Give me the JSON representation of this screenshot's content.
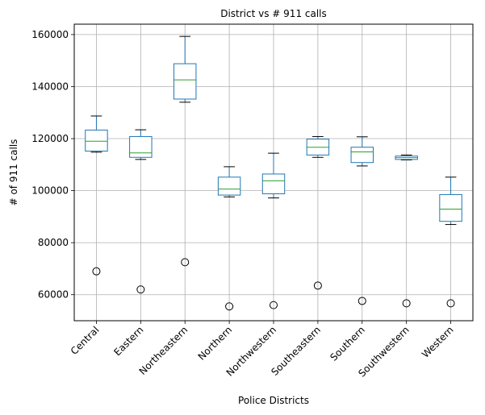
{
  "chart_data": {
    "type": "box",
    "title": "District vs # 911 calls",
    "xlabel": "Police Districts",
    "ylabel": "# of 911 calls",
    "ylim": [
      50000,
      164000
    ],
    "yticks": [
      60000,
      80000,
      100000,
      120000,
      140000,
      160000
    ],
    "ytick_labels": [
      "60000",
      "80000",
      "100000",
      "120000",
      "140000",
      "160000"
    ],
    "grid": true,
    "colors": {
      "box": "#1f77b4",
      "median": "#2ca02c",
      "whisker": "#1f77b4",
      "cap": "#000000",
      "flier": "#000000",
      "grid": "#b0b0b0"
    },
    "categories": [
      "Central",
      "Eastern",
      "Northeastern",
      "Northern",
      "Northwestern",
      "Southeastern",
      "Southern",
      "Southwestern",
      "Western"
    ],
    "boxes": [
      {
        "label": "Central",
        "whislo": 114800,
        "q1": 115200,
        "med": 119000,
        "q3": 123300,
        "whishi": 128700,
        "fliers": [
          69000
        ]
      },
      {
        "label": "Eastern",
        "whislo": 112000,
        "q1": 112800,
        "med": 114500,
        "q3": 120800,
        "whishi": 123400,
        "fliers": [
          62000
        ]
      },
      {
        "label": "Northeastern",
        "whislo": 134000,
        "q1": 135200,
        "med": 142600,
        "q3": 148800,
        "whishi": 159300,
        "fliers": [
          72500
        ]
      },
      {
        "label": "Northern",
        "whislo": 97600,
        "q1": 98300,
        "med": 100600,
        "q3": 105200,
        "whishi": 109200,
        "fliers": [
          55500
        ]
      },
      {
        "label": "Northwestern",
        "whislo": 97200,
        "q1": 98800,
        "med": 103800,
        "q3": 106400,
        "whishi": 114400,
        "fliers": [
          56000
        ]
      },
      {
        "label": "Southeastern",
        "whislo": 112800,
        "q1": 113700,
        "med": 116700,
        "q3": 119800,
        "whishi": 120800,
        "fliers": [
          63500
        ]
      },
      {
        "label": "Southern",
        "whislo": 109500,
        "q1": 110800,
        "med": 114900,
        "q3": 116700,
        "whishi": 120700,
        "fliers": [
          57600
        ]
      },
      {
        "label": "Southwestern",
        "whislo": 111800,
        "q1": 112000,
        "med": 112700,
        "q3": 113300,
        "whishi": 113700,
        "fliers": [
          56700
        ]
      },
      {
        "label": "Western",
        "whislo": 87000,
        "q1": 88200,
        "med": 92900,
        "q3": 98500,
        "whishi": 105200,
        "fliers": [
          56700
        ]
      }
    ]
  }
}
